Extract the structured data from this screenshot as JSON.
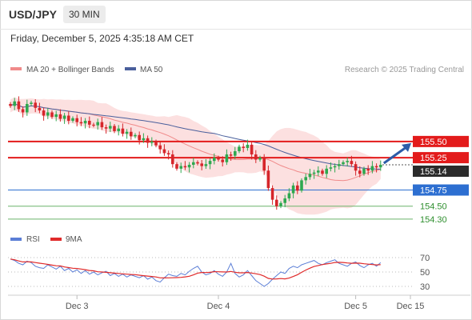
{
  "header": {
    "pair": "USD/JPY",
    "timeframe": "30 MIN"
  },
  "datetime": "Friday, December 5, 2025 4:35:18 AM CET",
  "legend": {
    "ma20": "MA 20 + Bollinger Bands",
    "ma50": "MA 50",
    "copyright": "Research © 2025 Trading Central",
    "rsi": "RSI",
    "rsi_ma": "9MA"
  },
  "colors": {
    "resistance": "#e31b1b",
    "pivot": "#2d6fd1",
    "support": "#6ab46a",
    "ma20": "#f08a8a",
    "ma50": "#4a5f9c",
    "band": "#fbd6d6",
    "candle_up": "#2ea84f",
    "candle_down": "#d6262b",
    "rsi": "#5b7ed6",
    "rsi_ma": "#e02a2a"
  },
  "chart_data": [
    {
      "type": "candlestick",
      "title": "USD/JPY 30 MIN",
      "ylim": [
        154.2,
        156.5
      ],
      "x_ticks": [
        "Dec 3",
        "Dec 4",
        "Dec 5",
        "Dec 15"
      ],
      "last_price": "155.14",
      "levels": [
        {
          "value": 155.5,
          "label": "155.50",
          "kind": "resistance"
        },
        {
          "value": 155.25,
          "label": "155.25",
          "kind": "resistance"
        },
        {
          "value": 154.75,
          "label": "154.75",
          "kind": "pivot"
        },
        {
          "value": 154.5,
          "label": "154.50",
          "kind": "support"
        },
        {
          "value": 154.3,
          "label": "154.30",
          "kind": "support"
        }
      ],
      "closes": [
        156.05,
        156.12,
        156.0,
        155.95,
        156.08,
        156.1,
        156.02,
        155.98,
        155.9,
        155.95,
        155.88,
        155.92,
        155.85,
        155.9,
        155.82,
        155.86,
        155.8,
        155.78,
        155.82,
        155.76,
        155.75,
        155.8,
        155.72,
        155.7,
        155.74,
        155.66,
        155.7,
        155.62,
        155.65,
        155.58,
        155.6,
        155.52,
        155.55,
        155.48,
        155.5,
        155.44,
        155.38,
        155.32,
        155.3,
        155.15,
        155.08,
        155.12,
        155.1,
        155.14,
        155.18,
        155.16,
        155.12,
        155.15,
        155.2,
        155.25,
        155.22,
        155.18,
        155.3,
        155.28,
        155.35,
        155.42,
        155.4,
        155.45,
        155.3,
        155.22,
        155.25,
        155.05,
        154.78,
        154.6,
        154.5,
        154.55,
        154.62,
        154.7,
        154.82,
        154.74,
        154.9,
        154.95,
        155.0,
        155.02,
        155.05,
        155.0,
        155.08,
        155.1,
        155.12,
        155.15,
        155.18,
        155.2,
        155.15,
        155.05,
        155.0,
        155.08,
        155.05,
        155.12,
        155.1,
        155.14
      ],
      "rsi": {
        "ylim": [
          20,
          80
        ],
        "ticks": [
          70,
          50,
          30
        ],
        "values": [
          68,
          66,
          62,
          60,
          65,
          63,
          58,
          56,
          55,
          60,
          57,
          54,
          58,
          52,
          55,
          50,
          53,
          48,
          52,
          47,
          50,
          46,
          49,
          51,
          45,
          48,
          44,
          47,
          43,
          46,
          44,
          42,
          45,
          40,
          43,
          38,
          36,
          42,
          47,
          45,
          44,
          48,
          46,
          51,
          55,
          58,
          50,
          46,
          48,
          52,
          47,
          44,
          50,
          62,
          48,
          43,
          46,
          52,
          45,
          38,
          34,
          30,
          34,
          40,
          45,
          50,
          48,
          55,
          58,
          56,
          60,
          62,
          64,
          66,
          62,
          60,
          63,
          65,
          67,
          62,
          60,
          58,
          62,
          64,
          59,
          56,
          60,
          62,
          58,
          63
        ]
      }
    }
  ]
}
